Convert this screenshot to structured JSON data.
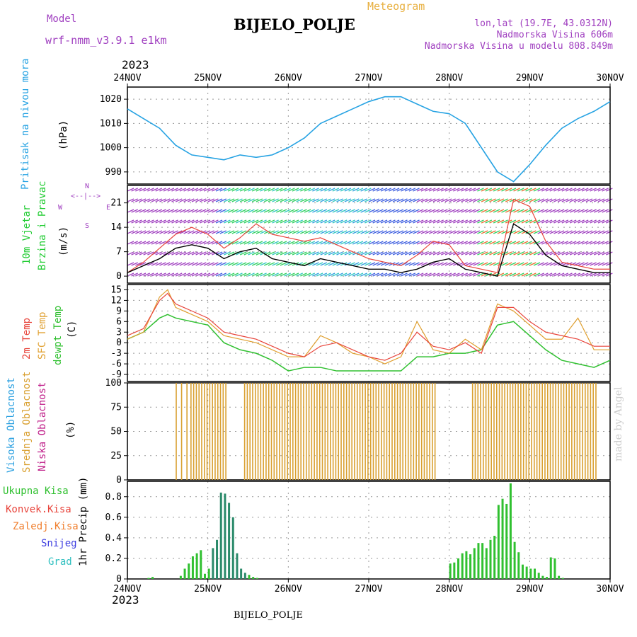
{
  "header": {
    "model_label": "Model",
    "model_name": "wrf-nmm_v3.9.1  e1km",
    "app_title": "Meteogram",
    "station": "BIJELO_POLJE",
    "coords": "lon,lat (19.7E, 43.0312N)",
    "elevation": "Nadmorska Visina 606m",
    "model_elevation": "Nadmorska Visina u modelu 808.849m",
    "year": "2023",
    "footer_station": "BIJELO_POLJE",
    "credit": "made by Angel"
  },
  "colors": {
    "pressure": "#27a3e3",
    "wind_green": "#22cc33",
    "temp": "#e8453c",
    "sfc_temp": "#e0a030",
    "dewpt": "#30c030",
    "high_cloud": "#2aa0e0",
    "mid_cloud": "#d9a030",
    "low_cloud": "#c0208a",
    "purple": "#a040c0",
    "precip": "#30c030",
    "credit": "#cccccc"
  },
  "chart_data": [
    {
      "type": "line",
      "panel": "pressure",
      "ylabel_color": "Pritisak na nivou mora",
      "ylabel_unit": "(hPa)",
      "ylim": [
        985,
        1025
      ],
      "yticks": [
        "990",
        "1000",
        "1010",
        "1020"
      ],
      "x_day_index": [
        0,
        0.2,
        0.4,
        0.6,
        0.8,
        1.0,
        1.2,
        1.4,
        1.6,
        1.8,
        2.0,
        2.2,
        2.4,
        2.6,
        2.8,
        3.0,
        3.2,
        3.4,
        3.6,
        3.8,
        4.0,
        4.2,
        4.4,
        4.6,
        4.8,
        5.0,
        5.2,
        5.4,
        5.6,
        5.8,
        6.0
      ],
      "series": [
        {
          "values": [
            1016,
            1012,
            1008,
            1001,
            997,
            996,
            995,
            997,
            996,
            997,
            1000,
            1004,
            1010,
            1013,
            1016,
            1019,
            1021,
            1021,
            1018,
            1015,
            1014,
            1010,
            1000,
            990,
            986,
            993,
            1001,
            1008,
            1012,
            1015,
            1019
          ]
        }
      ],
      "grid": true
    },
    {
      "type": "line",
      "panel": "wind",
      "ylabel_color": "10m Vjetar",
      "ylabel_color2": "Brzina i Pravac",
      "ylabel_unit": "(m/s)",
      "compass": {
        "n": "N",
        "w": "W",
        "e": "E",
        "s": "S"
      },
      "ylim": [
        -2,
        26
      ],
      "yticks": [
        "0",
        "7",
        "14",
        "21"
      ],
      "x_day_index": [
        0,
        0.2,
        0.4,
        0.6,
        0.8,
        1.0,
        1.2,
        1.4,
        1.6,
        1.8,
        2.0,
        2.2,
        2.4,
        2.6,
        2.8,
        3.0,
        3.2,
        3.4,
        3.6,
        3.8,
        4.0,
        4.2,
        4.4,
        4.6,
        4.8,
        5.0,
        5.2,
        5.4,
        5.6,
        5.8,
        6.0
      ],
      "series": [
        {
          "name": "speed",
          "values": [
            1,
            3,
            5,
            8,
            9,
            8,
            5,
            7,
            8,
            5,
            4,
            3,
            5,
            4,
            3,
            2,
            2,
            1,
            2,
            4,
            5,
            2,
            1,
            0,
            15,
            12,
            6,
            3,
            2,
            1,
            1
          ]
        },
        {
          "name": "gust",
          "values": [
            1,
            4,
            8,
            12,
            14,
            12,
            8,
            11,
            15,
            12,
            11,
            10,
            11,
            9,
            7,
            5,
            4,
            3,
            6,
            10,
            9,
            3,
            2,
            1,
            22,
            20,
            10,
            4,
            3,
            2,
            2
          ]
        }
      ],
      "grid": true
    },
    {
      "type": "line",
      "panel": "temperature",
      "ylabel_temp": "2m Temp",
      "ylabel_sfc": "SFC Temp",
      "ylabel_dewpt": "dewpt Temp",
      "ylabel_unit": "(C)",
      "ylim": [
        -11,
        16.5
      ],
      "yticks": [
        "15",
        "12",
        "9",
        "6",
        "3",
        "0",
        "-3",
        "-6",
        "-9"
      ],
      "x_day_index": [
        0,
        0.2,
        0.4,
        0.5,
        0.6,
        0.8,
        1.0,
        1.2,
        1.4,
        1.6,
        1.8,
        2.0,
        2.2,
        2.4,
        2.6,
        2.8,
        3.0,
        3.2,
        3.4,
        3.6,
        3.8,
        4.0,
        4.2,
        4.4,
        4.6,
        4.8,
        5.0,
        5.2,
        5.4,
        5.6,
        5.8,
        6.0
      ],
      "series": [
        {
          "name": "2m Temp",
          "values": [
            2,
            4,
            12,
            14,
            11,
            9,
            7,
            3,
            2,
            1,
            -1,
            -3,
            -4,
            -1,
            0,
            -2,
            -4,
            -5,
            -3,
            3,
            -1,
            -2,
            0,
            -3,
            10,
            10,
            6,
            3,
            2,
            1,
            -1,
            -1
          ]
        },
        {
          "name": "SFC Temp",
          "values": [
            1,
            3,
            13,
            15,
            10,
            8,
            6,
            2,
            1,
            0,
            -2,
            -4,
            -4,
            2,
            0,
            -3,
            -4,
            -6,
            -4,
            6,
            -2,
            -3,
            1,
            -2,
            11,
            9,
            5,
            1,
            1,
            7,
            -2,
            -2
          ]
        },
        {
          "name": "dewpt Temp",
          "values": [
            1,
            3,
            7,
            8,
            7,
            6,
            5,
            0,
            -2,
            -3,
            -5,
            -8,
            -7,
            -7,
            -8,
            -8,
            -8,
            -8,
            -8,
            -4,
            -4,
            -3,
            -3,
            -2,
            5,
            6,
            2,
            -2,
            -5,
            -6,
            -7,
            -5
          ]
        }
      ],
      "grid": true
    },
    {
      "type": "bar",
      "panel": "cloud",
      "ylabel_high": "Visoka Oblacnost",
      "ylabel_mid": "Srednja Oblacnost",
      "ylabel_low": "Niska Oblacnost",
      "ylabel_unit": "(%)",
      "ylim": [
        0,
        100
      ],
      "yticks": [
        "100",
        "75",
        "50",
        "25",
        "0"
      ],
      "series": [
        {
          "name": "Srednja Oblacnost",
          "hours": [
            36,
            40,
            44,
            47,
            49,
            51,
            53,
            55,
            57,
            59,
            61,
            63,
            65,
            67,
            69,
            71,
            73,
            75,
            77,
            79,
            81,
            83,
            85,
            87,
            89,
            91,
            93,
            95,
            97,
            99,
            101,
            103,
            105,
            107,
            109,
            111,
            113,
            115,
            117,
            119,
            121,
            123,
            125,
            127,
            129,
            131,
            133,
            135,
            137,
            139,
            141,
            143,
            145,
            147,
            149,
            151,
            153,
            155,
            157,
            159,
            161,
            163,
            165,
            167,
            169,
            171,
            173,
            175,
            177,
            179,
            181,
            183,
            185,
            187,
            189,
            191,
            193,
            195,
            197,
            199,
            201,
            203,
            205,
            207,
            209,
            211,
            213,
            215,
            217,
            219,
            221,
            223,
            225,
            227,
            229,
            231,
            233,
            235,
            237,
            239,
            241,
            243,
            245,
            247,
            249,
            251,
            253,
            255,
            257,
            259,
            261,
            263,
            265,
            267,
            269,
            271,
            273,
            275,
            277,
            279,
            281,
            283,
            285,
            287,
            289,
            291,
            293,
            295,
            297,
            299,
            301,
            303,
            305,
            307,
            309,
            311,
            313,
            315,
            317,
            319,
            321,
            323,
            325,
            327,
            329,
            331,
            333,
            335,
            337,
            339,
            341,
            343,
            345,
            347,
            349,
            351,
            353,
            355,
            357,
            359
          ],
          "values": [
            100,
            100,
            100,
            100,
            100,
            100,
            100,
            100,
            100,
            100,
            100,
            100,
            100,
            100,
            100,
            100,
            100,
            100,
            100,
            100,
            100,
            100,
            100,
            100,
            100,
            100,
            100,
            100,
            100,
            100,
            100,
            100,
            100,
            100,
            100,
            100,
            100,
            100,
            100,
            100,
            100,
            100,
            100,
            100,
            100,
            100,
            100,
            100,
            100,
            100,
            100,
            100,
            100,
            100,
            100,
            100,
            100,
            100,
            100,
            100,
            100,
            100,
            100,
            100,
            100,
            100,
            100,
            100,
            100,
            100,
            100,
            100,
            100,
            100,
            100,
            100,
            100,
            100,
            100,
            100,
            100,
            100,
            100,
            100,
            100,
            100,
            100,
            100,
            100,
            100,
            100,
            100,
            100,
            100,
            100,
            100,
            100,
            100,
            100,
            100,
            100,
            100,
            100,
            100,
            100,
            100,
            100,
            100,
            100,
            100,
            100,
            100,
            100,
            100,
            100,
            100,
            100,
            100,
            100,
            100,
            100,
            100,
            100,
            100,
            100,
            100,
            100,
            100,
            100,
            100,
            100,
            100,
            100,
            100,
            100,
            100,
            100,
            100,
            100,
            100,
            100,
            100,
            100,
            100,
            100,
            100,
            100,
            100,
            100,
            100,
            100,
            100,
            100,
            100,
            100,
            100,
            100,
            100,
            100,
            100
          ]
        }
      ],
      "grid": true
    },
    {
      "type": "bar",
      "panel": "precip",
      "legend": [
        "Ukupna Kisa",
        "Konvek.Kisa",
        "Zaledj.Kisa",
        "Snijeg",
        "Grad"
      ],
      "ylabel_unit": "1hr Precip (mm)",
      "ylim": [
        0,
        0.95
      ],
      "yticks": [
        "0.8",
        "0.6",
        "0.4",
        "0.2",
        "0"
      ],
      "series": [
        {
          "name": "Ukupna Kisa",
          "hours": [
            10,
            12,
            26,
            28,
            30,
            32,
            34,
            36,
            38,
            40,
            42,
            44,
            46,
            48,
            50,
            52,
            54,
            56,
            58,
            60,
            62,
            64,
            160,
            162,
            164,
            166,
            168,
            170,
            172,
            174,
            176,
            178,
            180,
            182,
            184,
            186,
            188,
            190,
            192,
            194,
            196,
            198,
            200,
            202,
            204,
            206,
            208,
            210,
            212,
            214,
            216
          ],
          "values": [
            0.01,
            0.02,
            0.03,
            0.1,
            0.15,
            0.22,
            0.25,
            0.28,
            0.05,
            0.1,
            0.3,
            0.38,
            0.84,
            0.83,
            0.74,
            0.6,
            0.25,
            0.1,
            0.06,
            0.04,
            0.02,
            0.01,
            0.15,
            0.16,
            0.2,
            0.25,
            0.27,
            0.24,
            0.3,
            0.35,
            0.35,
            0.3,
            0.38,
            0.42,
            0.72,
            0.78,
            0.73,
            0.93,
            0.36,
            0.26,
            0.14,
            0.12,
            0.1,
            0.1,
            0.06,
            0.03,
            0.02,
            0.21,
            0.2,
            0.03,
            0.01
          ]
        }
      ],
      "grid": true
    }
  ],
  "x_axis": {
    "top_labels": [
      "24NOV",
      "25NOV",
      "26NOV",
      "27NOV",
      "28NOV",
      "29NOV",
      "30NOV"
    ],
    "bottom_labels": [
      "24NOV",
      "25NOV",
      "26NOV",
      "27NOV",
      "28NOV",
      "29NOV",
      "30NOV"
    ]
  }
}
